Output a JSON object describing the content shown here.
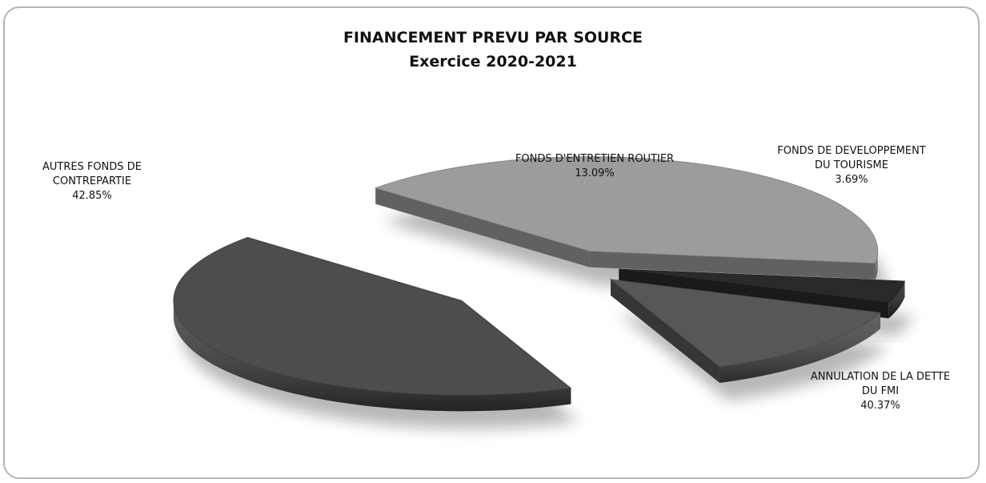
{
  "chart_data": {
    "type": "pie",
    "title": "FINANCEMENT PREVU PAR SOURCE",
    "subtitle": "Exercice 2020-2021",
    "categories": [
      "AUTRES FONDS DE CONTREPARTIE",
      "FONDS D'ENTRETIEN ROUTIER",
      "FONDS DE DEVELOPPEMENT DU TOURISME",
      "ANNULATION DE LA DETTE DU FMI"
    ],
    "values": [
      42.85,
      13.09,
      3.69,
      40.37
    ],
    "value_labels": [
      "42.85%",
      "13.09%",
      "3.69%",
      "40.37%"
    ],
    "label_lines": [
      [
        "AUTRES FONDS DE",
        "CONTREPARTIE"
      ],
      [
        "FONDS D'ENTRETIEN ROUTIER"
      ],
      [
        "FONDS DE DEVELOPPEMENT",
        "DU TOURISME"
      ],
      [
        "ANNULATION DE LA DETTE",
        "DU FMI"
      ]
    ],
    "colors": [
      "#4d4d4d",
      "#575757",
      "#2a2a2a",
      "#9c9c9c"
    ],
    "exploded": true,
    "legend": "none"
  }
}
